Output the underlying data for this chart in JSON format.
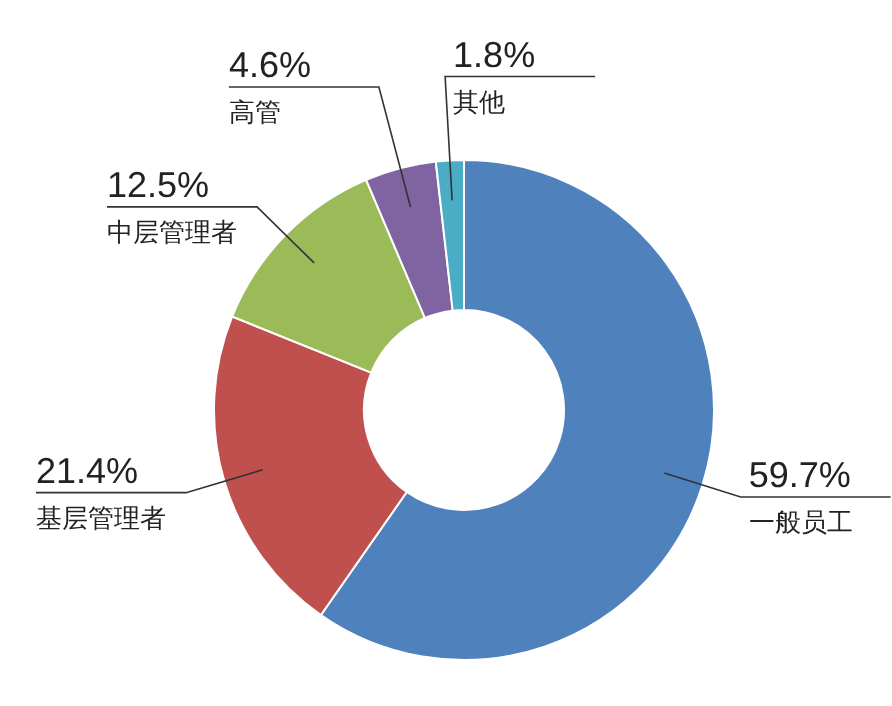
{
  "chart_data": {
    "type": "donut",
    "categories": [
      "一般员工",
      "基层管理者",
      "中层管理者",
      "高管",
      "其他"
    ],
    "values": [
      59.7,
      21.4,
      12.5,
      4.6,
      1.8
    ],
    "colors": [
      "#4f81bd",
      "#c0504d",
      "#9bbb59",
      "#8064a2",
      "#4bacc6"
    ],
    "value_labels": [
      "59.7%",
      "21.4%",
      "12.5%",
      "4.6%",
      "1.8%"
    ]
  }
}
